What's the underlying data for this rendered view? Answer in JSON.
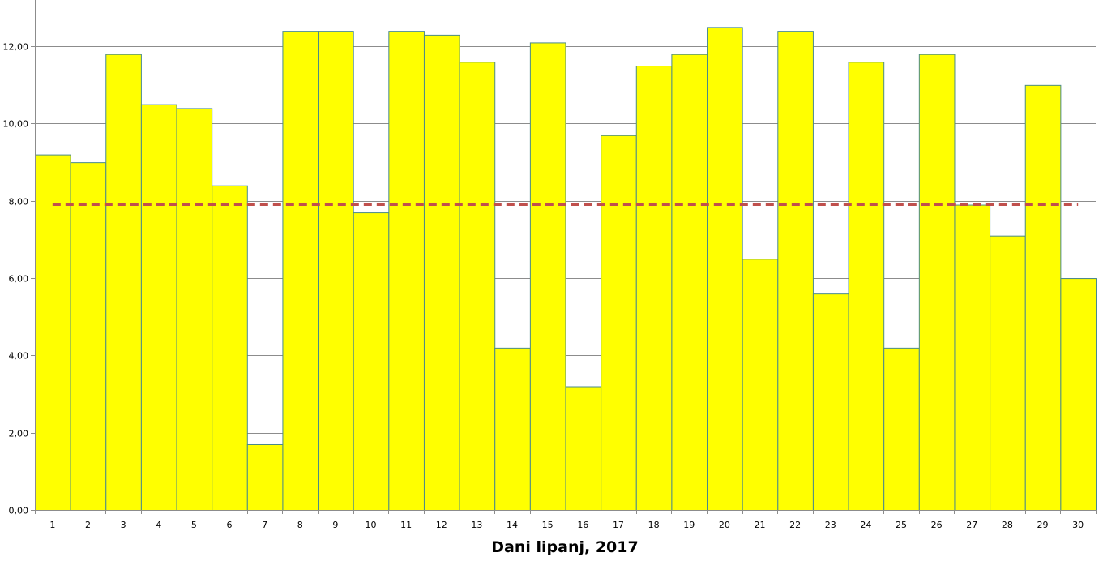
{
  "chart_data": {
    "type": "bar",
    "xlabel": "Dani lipanj, 2017",
    "ylabel": "",
    "title": "",
    "ylim": [
      0,
      13.2
    ],
    "yticks": [
      0,
      2,
      4,
      6,
      8,
      10,
      12
    ],
    "ytick_labels": [
      "0,00",
      "2,00",
      "4,00",
      "6,00",
      "8,00",
      "10,00",
      "12,00"
    ],
    "grid": true,
    "categories": [
      "1",
      "2",
      "3",
      "4",
      "5",
      "6",
      "7",
      "8",
      "9",
      "10",
      "11",
      "12",
      "13",
      "14",
      "15",
      "16",
      "17",
      "18",
      "19",
      "20",
      "21",
      "22",
      "23",
      "24",
      "25",
      "26",
      "27",
      "28",
      "29",
      "30"
    ],
    "values": [
      9.2,
      9.0,
      11.8,
      10.5,
      10.4,
      8.4,
      1.7,
      12.4,
      12.4,
      7.7,
      12.4,
      12.3,
      11.6,
      4.2,
      12.1,
      3.2,
      9.7,
      11.5,
      11.8,
      12.5,
      6.5,
      12.4,
      5.6,
      11.6,
      4.2,
      11.8,
      7.9,
      7.1,
      11.0,
      6.0
    ],
    "average_line": 7.9,
    "colors": {
      "bar_fill": "#ffff00",
      "bar_stroke": "#4a8a8a",
      "average_line": "#c0504d",
      "grid": "#8c8c8c",
      "axis": "#8c8c8c"
    }
  }
}
